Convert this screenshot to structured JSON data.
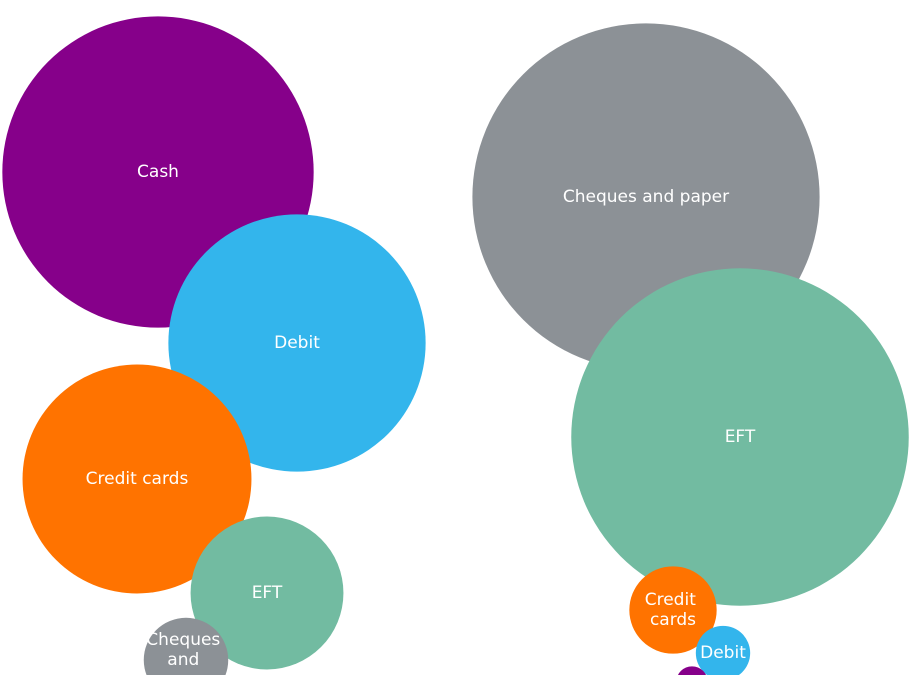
{
  "chart_data": [
    {
      "type": "bubble",
      "categories": [
        "Cash",
        "Debit",
        "Credit cards",
        "EFT",
        "Cheques and paper"
      ],
      "values": [
        39.4,
        26.9,
        21.3,
        9.5,
        2.9
      ],
      "colors": [
        "#86008a",
        "#33b5ec",
        "#ff7300",
        "#72bba1",
        "#8c9196"
      ]
    },
    {
      "type": "bubble",
      "categories": [
        "Cheques and paper",
        "EFT",
        "Credit cards",
        "Debit",
        null
      ],
      "values": [
        49.0,
        46.3,
        3.1,
        1.2,
        0.4
      ],
      "colors": [
        "#8c9196",
        "#72bba1",
        "#ff7300",
        "#33b5ec",
        "#86008a"
      ]
    }
  ]
}
